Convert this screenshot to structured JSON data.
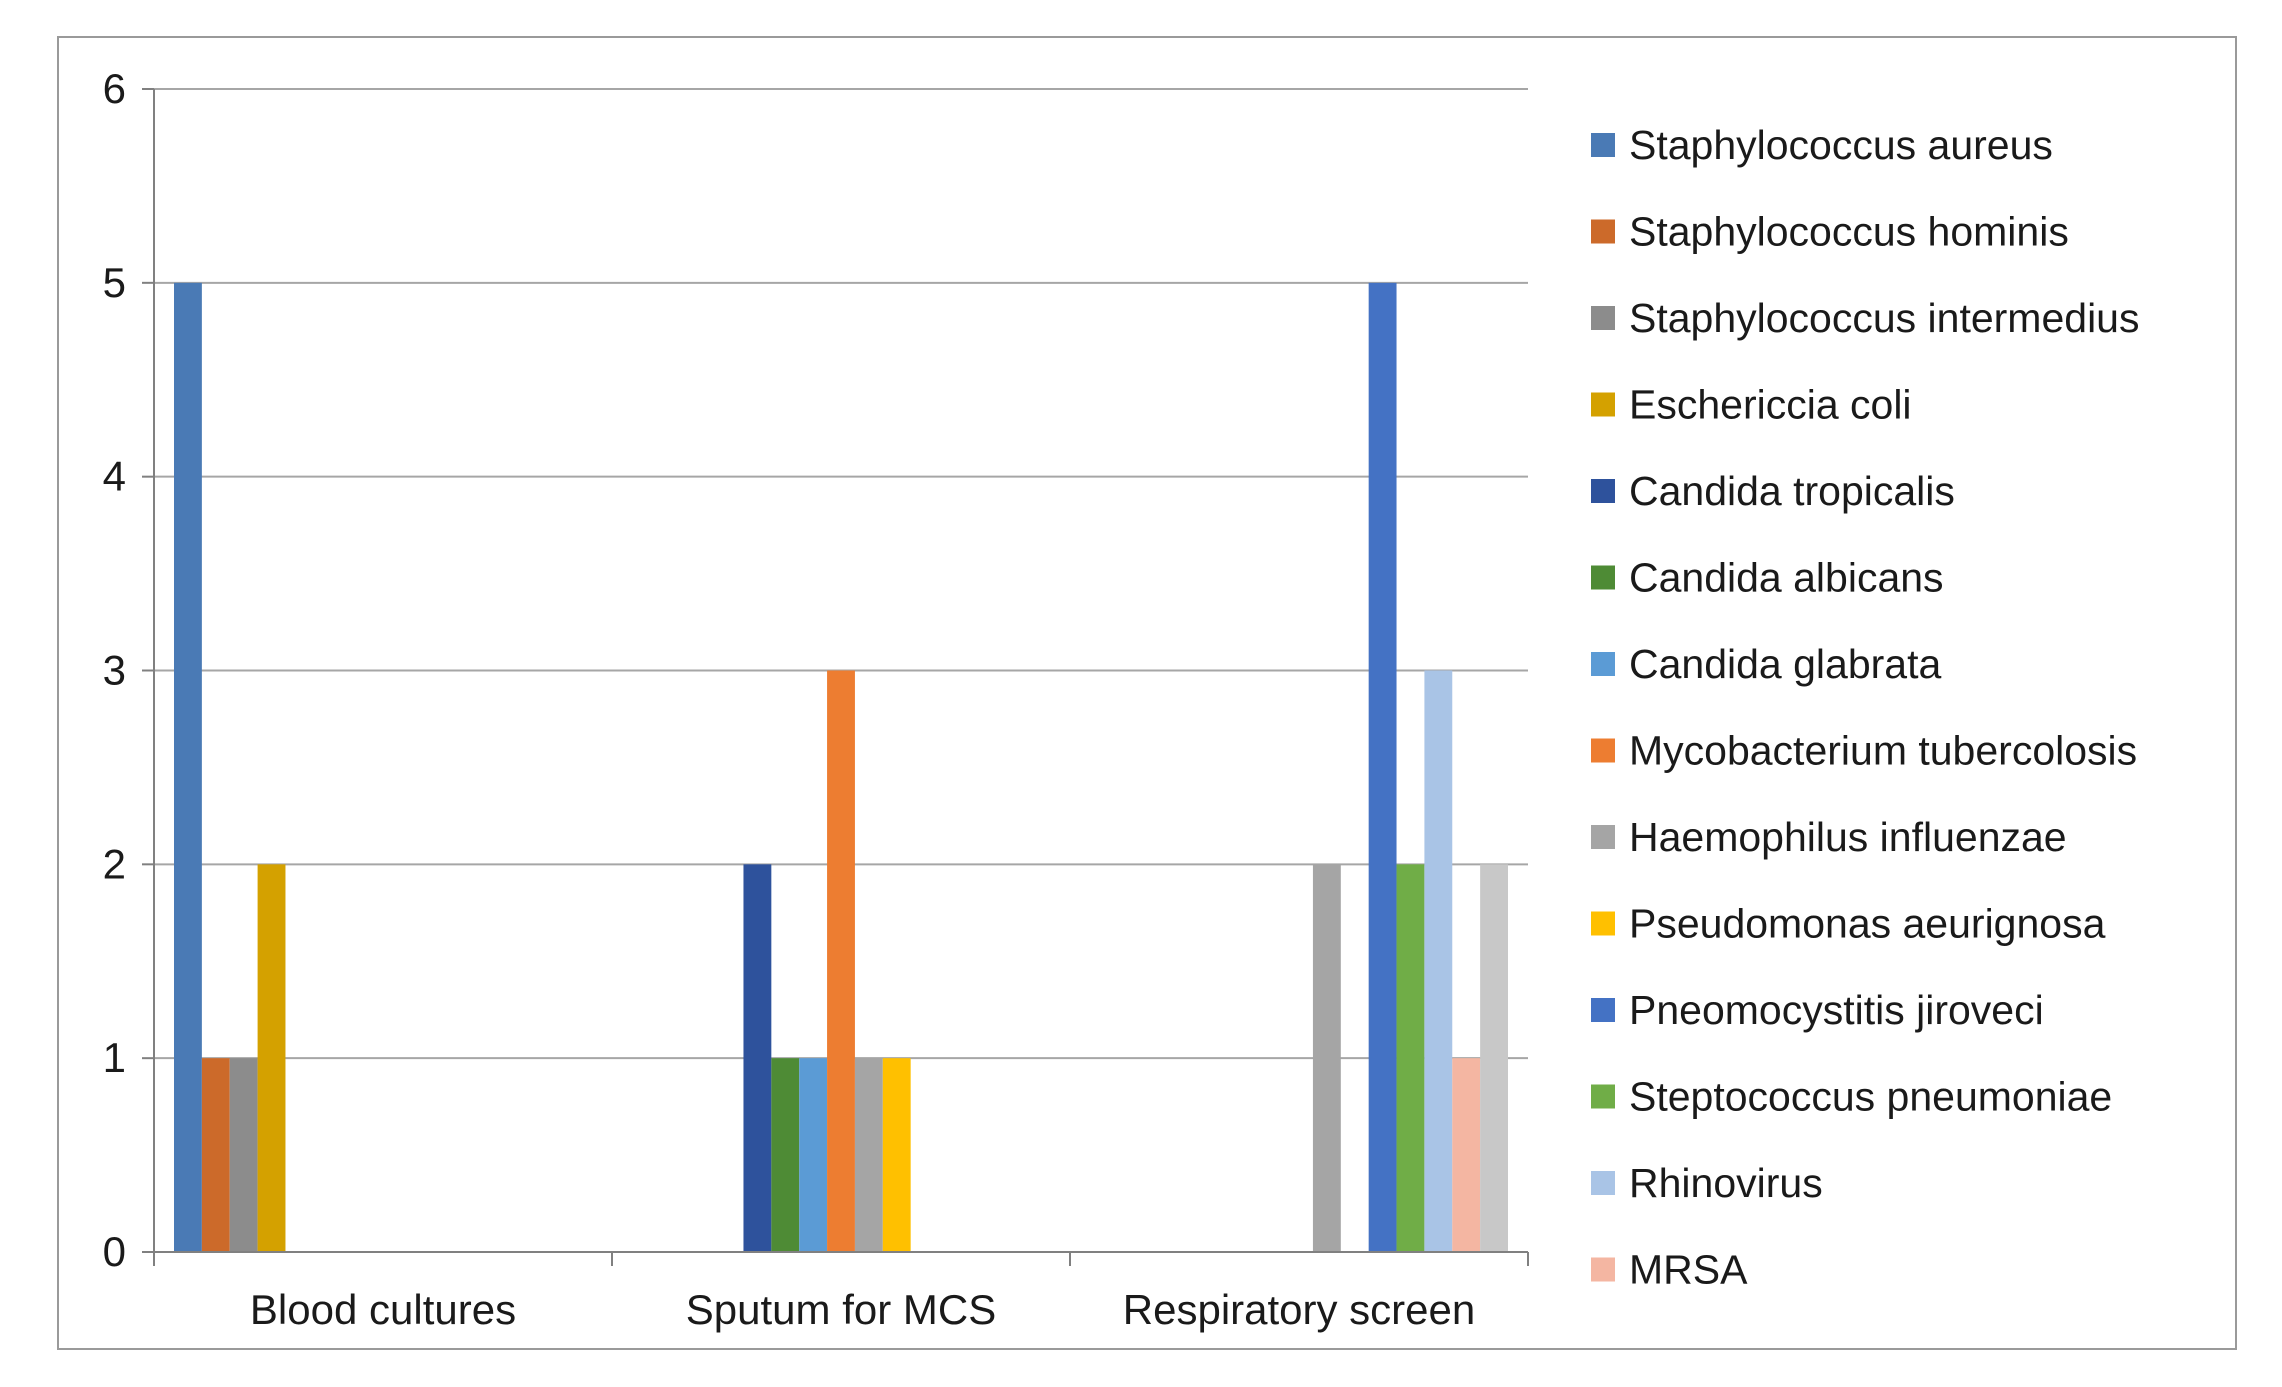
{
  "chart_data": {
    "type": "bar",
    "categories": [
      "Blood cultures",
      "Sputum for MCS",
      "Respiratory screen"
    ],
    "ylim": [
      0,
      6
    ],
    "yticks": [
      "0",
      "1",
      "2",
      "3",
      "4",
      "5",
      "6"
    ],
    "grid": true,
    "legend_position": "right",
    "series": [
      {
        "name": "Staphylococcus aureus",
        "color": "#4a7ab5",
        "values": [
          5,
          0,
          0
        ]
      },
      {
        "name": "Staphylococcus hominis",
        "color": "#cc6a2a",
        "values": [
          1,
          0,
          0
        ]
      },
      {
        "name": "Staphylococcus intermedius",
        "color": "#8c8c8c",
        "values": [
          1,
          0,
          0
        ]
      },
      {
        "name": "Eschericcia coli",
        "color": "#d4a100",
        "values": [
          2,
          0,
          0
        ]
      },
      {
        "name": "Candida tropicalis",
        "color": "#2e529c",
        "values": [
          0,
          2,
          0
        ]
      },
      {
        "name": "Candida albicans",
        "color": "#4e8b35",
        "values": [
          0,
          1,
          0
        ]
      },
      {
        "name": "Candida glabrata",
        "color": "#5b9bd5",
        "values": [
          0,
          1,
          0
        ]
      },
      {
        "name": "Mycobacterium tubercolosis",
        "color": "#ed7d31",
        "values": [
          0,
          3,
          0
        ]
      },
      {
        "name": "Haemophilus influenzae",
        "color": "#a5a5a5",
        "values": [
          0,
          1,
          2
        ]
      },
      {
        "name": "Pseudomonas aeurignosa",
        "color": "#ffc000",
        "values": [
          0,
          1,
          0
        ]
      },
      {
        "name": "Pneomocystitis jiroveci",
        "color": "#4472c4",
        "values": [
          0,
          0,
          5
        ]
      },
      {
        "name": "Steptococcus pneumoniae",
        "color": "#70ad47",
        "values": [
          0,
          0,
          2
        ]
      },
      {
        "name": "Rhinovirus",
        "color": "#a9c4e6",
        "values": [
          0,
          0,
          3
        ]
      },
      {
        "name": "MRSA",
        "color": "#f4b6a2",
        "values": [
          0,
          0,
          1
        ]
      },
      {
        "name": "",
        "color": "#c8c8c8",
        "values": [
          0,
          0,
          2
        ]
      }
    ]
  }
}
